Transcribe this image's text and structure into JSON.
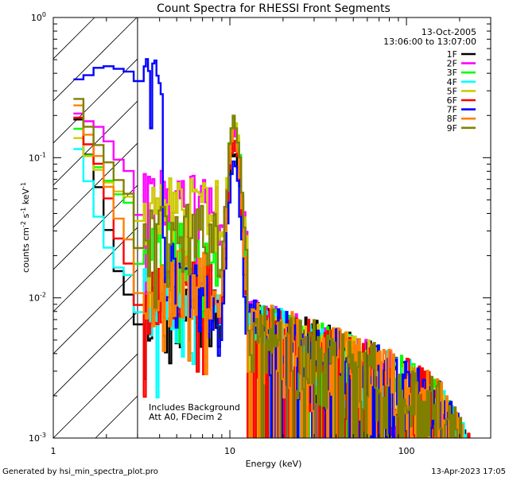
{
  "chart_data": {
    "type": "line",
    "title": "Count Spectra for RHESSI Front Segments",
    "xlabel": "Energy (keV)",
    "ylabel_base": "counts cm",
    "ylabel_parts": [
      "-2",
      " s",
      "-1",
      " keV",
      "-1"
    ],
    "xscale": "log",
    "yscale": "log",
    "xlim": [
      1,
      300
    ],
    "ylim": [
      0.001,
      1
    ],
    "x_major_ticks": [
      {
        "value": 1,
        "label": "1"
      },
      {
        "value": 10,
        "label": "10"
      },
      {
        "value": 100,
        "label": "100"
      }
    ],
    "y_major_ticks": [
      {
        "value": 0.001,
        "base": "10",
        "exp": "-3"
      },
      {
        "value": 0.01,
        "base": "10",
        "exp": "-2"
      },
      {
        "value": 0.1,
        "base": "10",
        "exp": "-1"
      },
      {
        "value": 1,
        "base": "10",
        "exp": "0"
      }
    ],
    "attenuator_region": {
      "x_min": 1,
      "x_max": 3
    },
    "annotations": {
      "date": "13-Oct-2005",
      "time_range": "13:06:00 to 13:07:00",
      "note1": "Includes Background",
      "note2": "Att A0, FDecim 2"
    },
    "series": [
      {
        "name": "1F",
        "color": "#000000",
        "low": [
          0.25,
          0.1,
          0.05,
          0.02,
          0.012,
          0.009
        ],
        "floor": 0.0075,
        "peak": 0.12,
        "seed": 11
      },
      {
        "name": "2F",
        "color": "#ff00ff",
        "low": [
          0.22,
          0.18,
          0.16,
          0.11,
          0.085,
          0.075
        ],
        "floor": 0.045,
        "peak": 0.16,
        "seed": 22
      },
      {
        "name": "3F",
        "color": "#00ff00",
        "low": [
          0.2,
          0.1,
          0.08,
          0.06,
          0.05,
          0.045
        ],
        "floor": 0.02,
        "peak": 0.21,
        "seed": 33
      },
      {
        "name": "4F",
        "color": "#00ffff",
        "low": [
          0.15,
          0.065,
          0.03,
          0.018,
          0.015,
          0.014
        ],
        "floor": 0.009,
        "peak": 0.14,
        "seed": 44
      },
      {
        "name": "5F",
        "color": "#cccc00",
        "low": [
          0.16,
          0.1,
          0.075,
          0.06,
          0.055,
          0.05
        ],
        "floor": 0.04,
        "peak": 0.17,
        "seed": 55
      },
      {
        "name": "6F",
        "color": "#ff0000",
        "low": [
          0.24,
          0.12,
          0.08,
          0.035,
          0.02,
          0.015
        ],
        "floor": 0.01,
        "peak": 0.13,
        "seed": 66
      },
      {
        "name": "7F",
        "color": "#0000ff",
        "low": [
          0.35,
          0.39,
          0.46,
          0.44,
          0.42,
          0.4
        ],
        "floor": 0.006,
        "peak": 0.09,
        "seed": 77
      },
      {
        "name": "8F",
        "color": "#ff8000",
        "low": [
          0.3,
          0.14,
          0.09,
          0.045,
          0.03,
          0.022
        ],
        "floor": 0.012,
        "peak": 0.15,
        "seed": 88
      },
      {
        "name": "9F",
        "color": "#808000",
        "low": [
          0.33,
          0.16,
          0.11,
          0.08,
          0.06,
          0.05
        ],
        "floor": 0.025,
        "peak": 0.18,
        "seed": 99
      }
    ]
  },
  "footer": {
    "generated_by": "Generated by hsi_min_spectra_plot.pro",
    "timestamp": "13-Apr-2023 17:05"
  }
}
